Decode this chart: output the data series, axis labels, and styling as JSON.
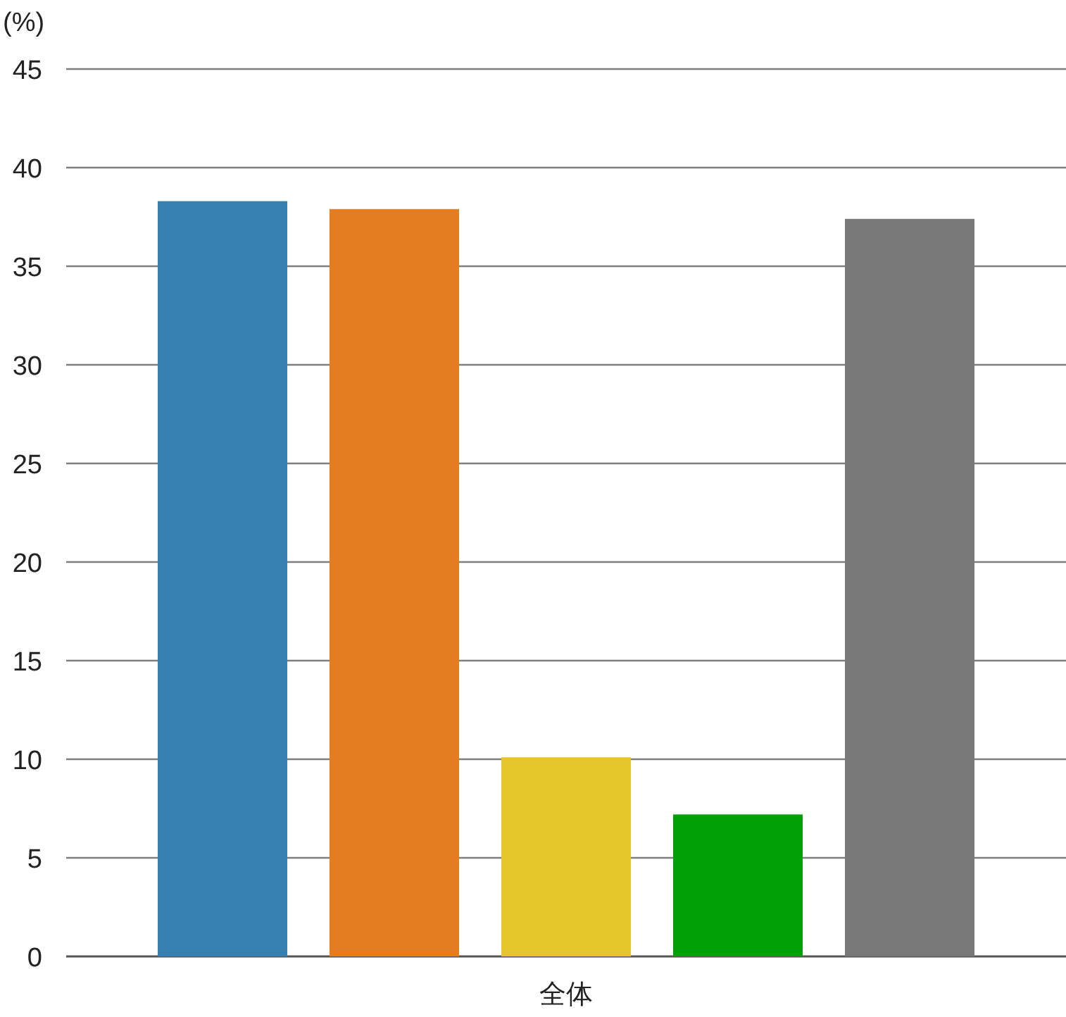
{
  "chart_data": {
    "type": "bar",
    "ylabel": "(%)",
    "categories": [
      "全体"
    ],
    "series": [
      {
        "color": "#3580b1",
        "values": [
          38.3
        ]
      },
      {
        "color": "#e47c20",
        "values": [
          37.9
        ]
      },
      {
        "color": "#e5c62a",
        "values": [
          10.1
        ]
      },
      {
        "color": "#00a006",
        "values": [
          7.2
        ]
      },
      {
        "color": "#787878",
        "values": [
          37.4
        ]
      }
    ],
    "ylim": [
      0,
      45
    ],
    "yticks": [
      0,
      5,
      10,
      15,
      20,
      25,
      30,
      35,
      40,
      45
    ],
    "grid": "y"
  }
}
